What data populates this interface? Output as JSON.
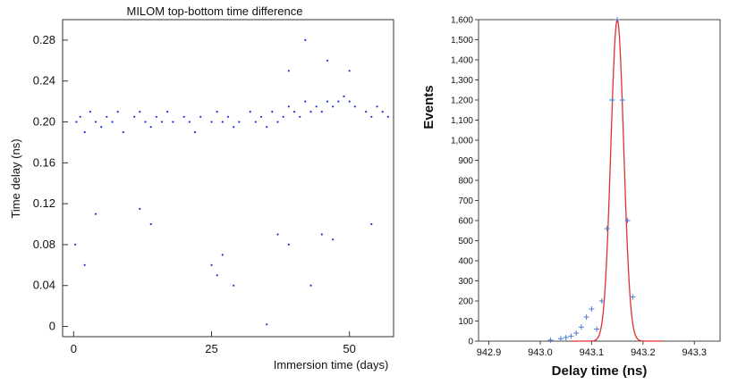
{
  "chart_data": [
    {
      "type": "scatter",
      "title": "MILOM top-bottom time difference",
      "xlabel": "Immersion time (days)",
      "ylabel": "Time delay (ns)",
      "xlim": [
        -2,
        58
      ],
      "ylim": [
        -0.01,
        0.3
      ],
      "x_ticks": [
        0,
        25,
        50
      ],
      "y_ticks": [
        0,
        0.04,
        0.08,
        0.12,
        0.16,
        0.2,
        0.24,
        0.28
      ],
      "y_tick_labels": [
        "0",
        "0.04",
        "0.08",
        "0.12",
        "0.16",
        "0.20",
        "0.24",
        "0.28"
      ],
      "grid": false,
      "marker_color": "#1f2fe0",
      "series": [
        {
          "points": [
            [
              0.5,
              0.2
            ],
            [
              1.2,
              0.205
            ],
            [
              2,
              0.19
            ],
            [
              3,
              0.21
            ],
            [
              4,
              0.2
            ],
            [
              5,
              0.195
            ],
            [
              6,
              0.205
            ],
            [
              7,
              0.2
            ],
            [
              8,
              0.21
            ],
            [
              9,
              0.19
            ],
            [
              11,
              0.205
            ],
            [
              12,
              0.21
            ],
            [
              13,
              0.2
            ],
            [
              14,
              0.195
            ],
            [
              15,
              0.205
            ],
            [
              16,
              0.2
            ],
            [
              17,
              0.21
            ],
            [
              18,
              0.2
            ],
            [
              20,
              0.205
            ],
            [
              21,
              0.2
            ],
            [
              22,
              0.19
            ],
            [
              23,
              0.205
            ],
            [
              25,
              0.2
            ],
            [
              26,
              0.21
            ],
            [
              27,
              0.2
            ],
            [
              28,
              0.205
            ],
            [
              29,
              0.195
            ],
            [
              30,
              0.2
            ],
            [
              32,
              0.21
            ],
            [
              33,
              0.2
            ],
            [
              34,
              0.205
            ],
            [
              35,
              0.195
            ],
            [
              36,
              0.21
            ],
            [
              37,
              0.2
            ],
            [
              38,
              0.205
            ],
            [
              39,
              0.215
            ],
            [
              40,
              0.21
            ],
            [
              41,
              0.205
            ],
            [
              42,
              0.22
            ],
            [
              43,
              0.21
            ],
            [
              44,
              0.215
            ],
            [
              45,
              0.21
            ],
            [
              46,
              0.22
            ],
            [
              47,
              0.215
            ],
            [
              48,
              0.22
            ],
            [
              49,
              0.225
            ],
            [
              50,
              0.22
            ],
            [
              51,
              0.215
            ],
            [
              53,
              0.21
            ],
            [
              54,
              0.205
            ],
            [
              55,
              0.215
            ],
            [
              56,
              0.21
            ],
            [
              57,
              0.205
            ],
            [
              0.3,
              0.08
            ],
            [
              2,
              0.06
            ],
            [
              4,
              0.11
            ],
            [
              12,
              0.115
            ],
            [
              14,
              0.1
            ],
            [
              25,
              0.06
            ],
            [
              26,
              0.05
            ],
            [
              27,
              0.07
            ],
            [
              29,
              0.04
            ],
            [
              35,
              0.002
            ],
            [
              37,
              0.09
            ],
            [
              39,
              0.08
            ],
            [
              42,
              0.28
            ],
            [
              43,
              0.04
            ],
            [
              45,
              0.09
            ],
            [
              47,
              0.085
            ],
            [
              54,
              0.1
            ],
            [
              50,
              0.25
            ],
            [
              46,
              0.26
            ],
            [
              39,
              0.25
            ]
          ]
        }
      ]
    },
    {
      "type": "line",
      "xlabel": "Delay time (ns)",
      "ylabel": "Events",
      "xlim": [
        942.88,
        943.35
      ],
      "ylim": [
        0,
        1600
      ],
      "x_ticks": [
        942.9,
        943.0,
        943.1,
        943.2,
        943.3
      ],
      "x_tick_labels": [
        "942.9",
        "943.0",
        "943.1",
        "943.2",
        "943.3"
      ],
      "y_ticks": [
        0,
        100,
        200,
        300,
        400,
        500,
        600,
        700,
        800,
        900,
        1000,
        1100,
        1200,
        1300,
        1400,
        1500,
        1600
      ],
      "y_tick_labels": [
        "0",
        "100",
        "200",
        "300",
        "400",
        "500",
        "600",
        "700",
        "800",
        "900",
        "1,000",
        "1,100",
        "1,200",
        "1,300",
        "1,400",
        "1,500",
        "1,600"
      ],
      "grid": false,
      "fit_color": "#e03030",
      "point_color": "#4a7bd0",
      "fit": {
        "type": "gaussian",
        "mean": 943.15,
        "amplitude": 1600,
        "sigma": 0.0125,
        "x_range": [
          943.06,
          943.24
        ]
      },
      "series": [
        {
          "x": [
            943.02,
            943.04,
            943.05,
            943.06,
            943.07,
            943.08,
            943.09,
            943.1,
            943.11,
            943.12,
            943.13,
            943.14,
            943.15,
            943.16,
            943.17,
            943.18
          ],
          "y": [
            5,
            12,
            18,
            25,
            40,
            70,
            120,
            160,
            60,
            200,
            560,
            1200,
            1600,
            1200,
            600,
            220
          ]
        }
      ]
    }
  ]
}
